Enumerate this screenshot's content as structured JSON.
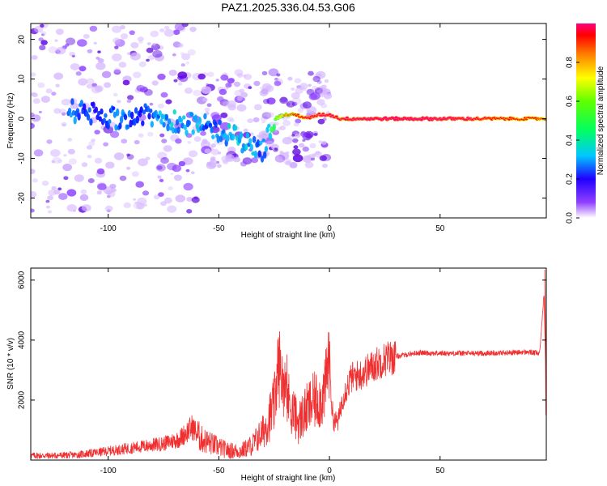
{
  "title": "PAZ1.2025.336.04.53.G06",
  "colors": {
    "snr_line": "#f03030",
    "ridge_strong": "#ff2020",
    "ridge_mid": "#20e020",
    "ridge_low": "#00c8ff",
    "scatter_dark": "#5a00e0",
    "scatter_mid": "#8a3cff",
    "scatter_light": "#d6b8ff"
  },
  "colormap": [
    "#ffffff",
    "#8000ff",
    "#0000ff",
    "#00c0ff",
    "#00ff80",
    "#80ff00",
    "#ffff00",
    "#ff8000",
    "#ff0000",
    "#ff0080"
  ],
  "chart_data": [
    {
      "type": "heatmap",
      "name": "spectrogram",
      "title": "PAZ1.2025.336.04.53.G06",
      "xlabel": "Height of straight line (km)",
      "ylabel": "Frequency (Hz)",
      "xlim": [
        -135,
        98
      ],
      "ylim": [
        -25,
        24
      ],
      "xticks": [
        -100,
        -50,
        0,
        50
      ],
      "xtick_labels": [
        "-100",
        "-50",
        "0",
        "50"
      ],
      "yticks": [
        -20,
        -10,
        0,
        10,
        20
      ],
      "ytick_labels": [
        "-20",
        "-10",
        "0",
        "10",
        "20"
      ],
      "colorbar": {
        "label": "Normalized spectral amplitude",
        "range": [
          0,
          1
        ],
        "ticks": [
          0.0,
          0.2,
          0.4,
          0.6,
          0.8
        ],
        "tick_labels": [
          "0.0",
          "0.2",
          "0.4",
          "0.6",
          "0.8"
        ]
      },
      "ridge": {
        "x": [
          -115,
          -105,
          -95,
          -85,
          -75,
          -65,
          -55,
          -45,
          -38,
          -30,
          -25,
          -20,
          -15,
          -10,
          -5,
          0,
          5,
          10,
          20,
          40,
          60,
          80,
          97
        ],
        "freq": [
          2,
          1,
          0,
          1,
          0,
          -1,
          -2,
          -4,
          -6,
          -8,
          0,
          1,
          1,
          0,
          1,
          1,
          0,
          0,
          0,
          0,
          0,
          0,
          0
        ],
        "amplitude": [
          0.25,
          0.2,
          0.25,
          0.2,
          0.3,
          0.3,
          0.25,
          0.3,
          0.3,
          0.25,
          0.45,
          0.6,
          0.7,
          0.8,
          0.8,
          0.85,
          0.8,
          0.85,
          0.9,
          0.9,
          0.85,
          0.75,
          0.7
        ]
      }
    },
    {
      "type": "line",
      "name": "snr",
      "xlabel": "Height of straight line (km)",
      "ylabel": "SNR (10 * v/v)",
      "xlim": [
        -135,
        98
      ],
      "ylim": [
        0,
        6400
      ],
      "xticks": [
        -100,
        -50,
        0,
        50
      ],
      "xtick_labels": [
        "-100",
        "-50",
        "0",
        "50"
      ],
      "yticks": [
        2000,
        4000,
        6000
      ],
      "ytick_labels": [
        "2000",
        "4000",
        "6000"
      ],
      "series": [
        {
          "name": "SNR",
          "x": [
            -135,
            -125,
            -115,
            -105,
            -95,
            -85,
            -75,
            -68,
            -62,
            -58,
            -52,
            -46,
            -40,
            -35,
            -30,
            -27,
            -25,
            -23,
            -21,
            -20,
            -18,
            -16,
            -14,
            -12,
            -10,
            -8,
            -6,
            -4,
            -2,
            -1,
            0,
            1,
            2,
            4,
            6,
            8,
            10,
            14,
            18,
            22,
            26,
            30,
            35,
            40,
            50,
            60,
            70,
            80,
            90,
            95,
            97,
            98
          ],
          "y": [
            150,
            150,
            170,
            250,
            350,
            450,
            550,
            700,
            1100,
            700,
            500,
            320,
            300,
            500,
            950,
            1450,
            1800,
            3200,
            2700,
            2300,
            1900,
            1500,
            1250,
            1500,
            1700,
            1900,
            2000,
            2000,
            2300,
            3100,
            3600,
            1800,
            1300,
            1300,
            2100,
            2450,
            2750,
            2850,
            3050,
            3250,
            3400,
            3450,
            3520,
            3580,
            3560,
            3560,
            3560,
            3580,
            3600,
            3550,
            5600,
            2000
          ]
        }
      ]
    }
  ]
}
